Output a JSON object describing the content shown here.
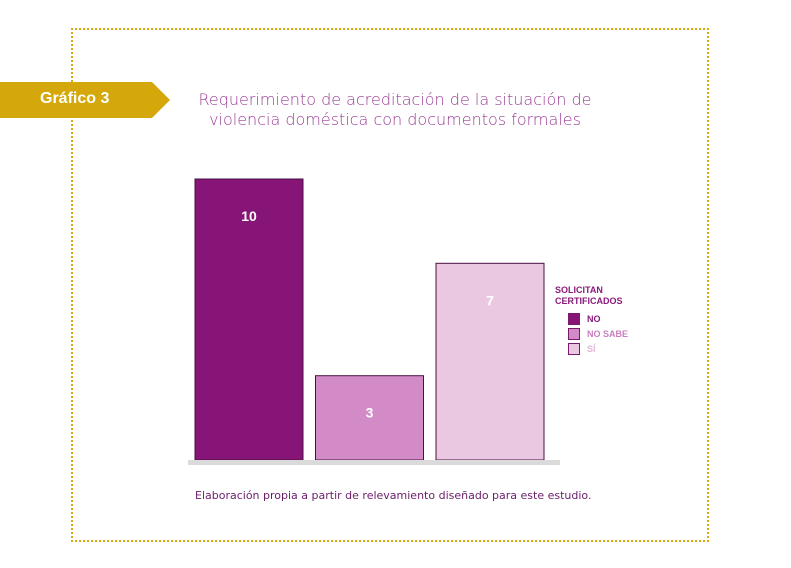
{
  "badge": {
    "label": "Gráfico 3"
  },
  "chart_data": {
    "type": "bar",
    "title_lines": [
      "Requerimiento de acreditación de la situación de",
      "violencia doméstica con documentos formales"
    ],
    "categories": [
      "NO",
      "NO SABE",
      "SÍ"
    ],
    "values": [
      10,
      3,
      7
    ],
    "data_labels": [
      "10",
      "3",
      "7"
    ],
    "ylim": [
      0,
      10
    ],
    "colors": [
      "#861577",
      "#d38bc8",
      "#ebc8e1"
    ],
    "label_colors": [
      "#ffffff",
      "#ffffff",
      "#ffffff"
    ],
    "legend": {
      "title_lines": [
        "SOLICITAN",
        "CERTIFICADOS"
      ],
      "placement": "right",
      "items": [
        {
          "label": "NO",
          "color": "#861577",
          "text_color": "#8b1a7d"
        },
        {
          "label": "NO SABE",
          "color": "#d38bc8",
          "text_color": "#c97fbf"
        },
        {
          "label": "SÍ",
          "color": "#ebc8e1",
          "text_color": "#e3b7d6"
        }
      ]
    },
    "grid": false
  },
  "source": "Elaboración propia a partir de relevamiento diseñado para este estudio."
}
